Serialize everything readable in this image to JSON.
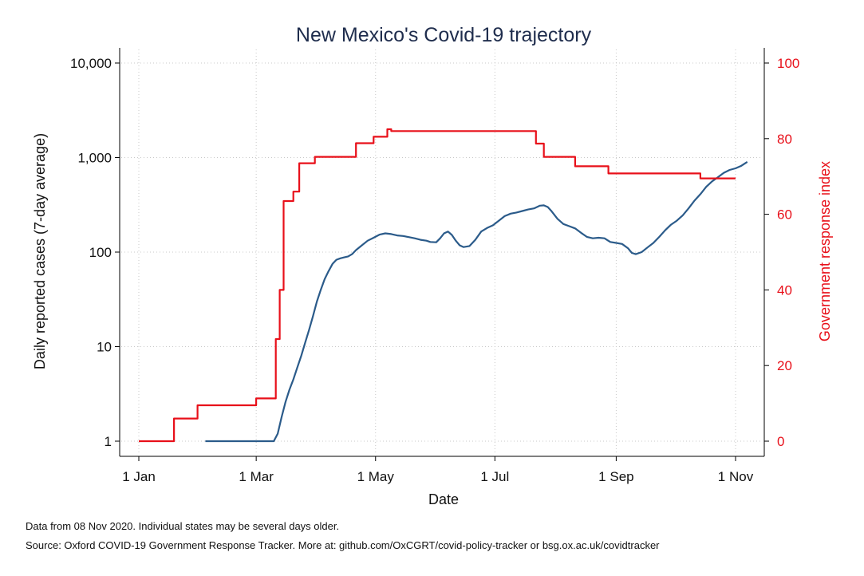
{
  "chart_data": {
    "type": "line",
    "title": "New Mexico's Covid-19 trajectory",
    "xlabel": "Date",
    "ylabel_left": "Daily reported cases (7-day average)",
    "ylabel_right": "Government response index",
    "x_ticks": [
      "1 Jan",
      "1 Mar",
      "1 May",
      "1 Jul",
      "1 Sep",
      "1 Nov"
    ],
    "x_tick_dates": [
      "2020-01-01",
      "2020-03-01",
      "2020-05-01",
      "2020-07-01",
      "2020-09-01",
      "2020-11-01"
    ],
    "xlim": [
      "2020-01-01",
      "2020-11-08"
    ],
    "y_left_scale": "log",
    "y_left_ticks": [
      "1",
      "10",
      "100",
      "1,000",
      "10,000"
    ],
    "y_left_tick_values": [
      1,
      10,
      100,
      1000,
      10000
    ],
    "y_left_lim": [
      1,
      10000
    ],
    "y_right_ticks": [
      "0",
      "20",
      "40",
      "60",
      "80",
      "100"
    ],
    "y_right_tick_values": [
      0,
      20,
      40,
      60,
      80,
      100
    ],
    "y_right_lim": [
      0,
      100
    ],
    "grid": true,
    "series": [
      {
        "axis": "left",
        "color": "#2b5b8a",
        "points": [
          [
            "2020-02-04",
            1
          ],
          [
            "2020-03-10",
            1
          ],
          [
            "2020-03-12",
            1.2
          ],
          [
            "2020-03-14",
            1.8
          ],
          [
            "2020-03-16",
            2.6
          ],
          [
            "2020-03-18",
            3.5
          ],
          [
            "2020-03-20",
            4.5
          ],
          [
            "2020-03-22",
            6
          ],
          [
            "2020-03-24",
            8
          ],
          [
            "2020-03-26",
            11
          ],
          [
            "2020-03-28",
            15
          ],
          [
            "2020-03-30",
            21
          ],
          [
            "2020-04-01",
            30
          ],
          [
            "2020-04-03",
            40
          ],
          [
            "2020-04-05",
            52
          ],
          [
            "2020-04-07",
            63
          ],
          [
            "2020-04-09",
            75
          ],
          [
            "2020-04-11",
            83
          ],
          [
            "2020-04-13",
            86
          ],
          [
            "2020-04-15",
            88
          ],
          [
            "2020-04-17",
            90
          ],
          [
            "2020-04-19",
            95
          ],
          [
            "2020-04-21",
            105
          ],
          [
            "2020-04-24",
            118
          ],
          [
            "2020-04-27",
            132
          ],
          [
            "2020-04-30",
            142
          ],
          [
            "2020-05-03",
            153
          ],
          [
            "2020-05-06",
            158
          ],
          [
            "2020-05-09",
            155
          ],
          [
            "2020-05-12",
            150
          ],
          [
            "2020-05-15",
            148
          ],
          [
            "2020-05-18",
            144
          ],
          [
            "2020-05-21",
            140
          ],
          [
            "2020-05-24",
            135
          ],
          [
            "2020-05-27",
            132
          ],
          [
            "2020-05-29",
            128
          ],
          [
            "2020-06-01",
            127
          ],
          [
            "2020-06-03",
            140
          ],
          [
            "2020-06-05",
            158
          ],
          [
            "2020-06-07",
            165
          ],
          [
            "2020-06-09",
            152
          ],
          [
            "2020-06-11",
            132
          ],
          [
            "2020-06-13",
            118
          ],
          [
            "2020-06-15",
            113
          ],
          [
            "2020-06-18",
            116
          ],
          [
            "2020-06-21",
            135
          ],
          [
            "2020-06-24",
            165
          ],
          [
            "2020-06-27",
            180
          ],
          [
            "2020-06-30",
            192
          ],
          [
            "2020-07-03",
            215
          ],
          [
            "2020-07-06",
            240
          ],
          [
            "2020-07-09",
            255
          ],
          [
            "2020-07-12",
            262
          ],
          [
            "2020-07-15",
            272
          ],
          [
            "2020-07-18",
            282
          ],
          [
            "2020-07-21",
            290
          ],
          [
            "2020-07-24",
            310
          ],
          [
            "2020-07-26",
            312
          ],
          [
            "2020-07-28",
            300
          ],
          [
            "2020-07-30",
            270
          ],
          [
            "2020-08-02",
            225
          ],
          [
            "2020-08-05",
            198
          ],
          [
            "2020-08-08",
            188
          ],
          [
            "2020-08-11",
            178
          ],
          [
            "2020-08-14",
            160
          ],
          [
            "2020-08-17",
            145
          ],
          [
            "2020-08-20",
            140
          ],
          [
            "2020-08-23",
            142
          ],
          [
            "2020-08-26",
            140
          ],
          [
            "2020-08-29",
            128
          ],
          [
            "2020-09-01",
            125
          ],
          [
            "2020-09-04",
            122
          ],
          [
            "2020-09-07",
            110
          ],
          [
            "2020-09-09",
            98
          ],
          [
            "2020-09-11",
            95
          ],
          [
            "2020-09-14",
            100
          ],
          [
            "2020-09-17",
            112
          ],
          [
            "2020-09-20",
            125
          ],
          [
            "2020-09-23",
            145
          ],
          [
            "2020-09-26",
            170
          ],
          [
            "2020-09-29",
            195
          ],
          [
            "2020-10-02",
            215
          ],
          [
            "2020-10-05",
            245
          ],
          [
            "2020-10-08",
            290
          ],
          [
            "2020-10-11",
            350
          ],
          [
            "2020-10-14",
            410
          ],
          [
            "2020-10-17",
            490
          ],
          [
            "2020-10-20",
            560
          ],
          [
            "2020-10-23",
            620
          ],
          [
            "2020-10-26",
            690
          ],
          [
            "2020-10-29",
            740
          ],
          [
            "2020-11-01",
            770
          ],
          [
            "2020-11-04",
            820
          ],
          [
            "2020-11-07",
            900
          ]
        ]
      },
      {
        "axis": "right",
        "color": "#e8101a",
        "step": true,
        "points": [
          [
            "2020-01-01",
            0
          ],
          [
            "2020-01-19",
            6
          ],
          [
            "2020-01-31",
            9.5
          ],
          [
            "2020-03-01",
            11.3
          ],
          [
            "2020-03-11",
            27
          ],
          [
            "2020-03-13",
            40
          ],
          [
            "2020-03-15",
            63.5
          ],
          [
            "2020-03-20",
            66
          ],
          [
            "2020-03-23",
            73.5
          ],
          [
            "2020-03-31",
            75.2
          ],
          [
            "2020-04-21",
            78.8
          ],
          [
            "2020-04-30",
            80.5
          ],
          [
            "2020-05-07",
            82.5
          ],
          [
            "2020-05-09",
            82
          ],
          [
            "2020-07-22",
            78.7
          ],
          [
            "2020-07-26",
            75.2
          ],
          [
            "2020-08-11",
            72.7
          ],
          [
            "2020-08-28",
            70.8
          ],
          [
            "2020-10-14",
            69.5
          ],
          [
            "2020-11-01",
            69.5
          ]
        ]
      }
    ]
  },
  "footer": {
    "note1": "Data from 08 Nov 2020. Individual states may be several days older.",
    "note2": "Source: Oxford COVID-19 Government Response Tracker. More at: github.com/OxCGRT/covid-policy-tracker or bsg.ox.ac.uk/covidtracker"
  }
}
